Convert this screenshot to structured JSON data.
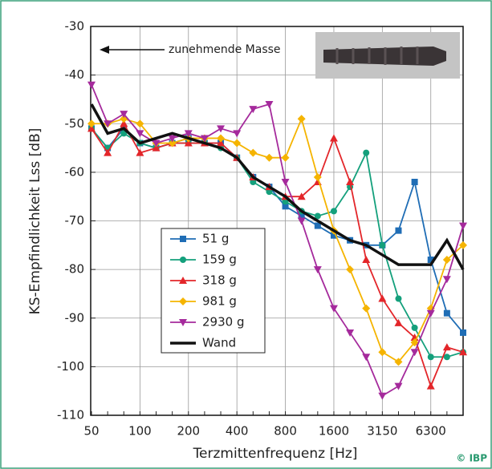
{
  "chart_data": {
    "type": "line",
    "ylabel": "KS-Empfindlichkeit Lss [dB]",
    "xlabel": "Terzmittenfrequenz [Hz]",
    "annotation": "zunehmende Masse",
    "credit": "© IBP",
    "categories": [
      "50",
      null,
      null,
      "100",
      null,
      null,
      "200",
      null,
      null,
      "400",
      null,
      null,
      "800",
      null,
      null,
      "1600",
      null,
      null,
      "3150",
      null,
      null,
      "6300",
      null,
      null
    ],
    "ylim": [
      -110,
      -30
    ],
    "yticks": [
      -30,
      -40,
      -50,
      -60,
      -70,
      -80,
      -90,
      -100,
      -110
    ],
    "grid": true,
    "series": [
      {
        "name": "51 g",
        "color": "#1f6db5",
        "marker": "square",
        "values": [
          -51,
          -55,
          -51,
          -54,
          -55,
          -54,
          -53,
          -54,
          -54,
          -57,
          -61,
          -63,
          -67,
          -69,
          -71,
          -73,
          -74,
          -75,
          -75,
          -72,
          -62,
          -78,
          -89,
          -93
        ]
      },
      {
        "name": "159 g",
        "color": "#14a07c",
        "marker": "circle",
        "values": [
          -51,
          -55,
          -52,
          -54,
          -55,
          -54,
          -54,
          -54,
          -55,
          -57,
          -62,
          -64,
          -66,
          -68,
          -69,
          -68,
          -63,
          -56,
          -75,
          -86,
          -92,
          -98,
          -98,
          -97
        ]
      },
      {
        "name": "318 g",
        "color": "#e3262a",
        "marker": "triangle",
        "values": [
          -51,
          -56,
          -50,
          -56,
          -55,
          -54,
          -54,
          -54,
          -54,
          -57,
          -61,
          -63,
          -65,
          -65,
          -62,
          -53,
          -62,
          -78,
          -86,
          -91,
          -94,
          -104,
          -96,
          -97
        ]
      },
      {
        "name": "981 g",
        "color": "#f5b400",
        "marker": "diamond",
        "values": [
          -50,
          -50,
          -49,
          -50,
          -54,
          -54,
          -53,
          -53,
          -53,
          -54,
          -56,
          -57,
          -57,
          -49,
          -61,
          -72,
          -80,
          -88,
          -97,
          -99,
          -95,
          -88,
          -78,
          -75
        ]
      },
      {
        "name": "2930 g",
        "color": "#a52a9c",
        "marker": "triangle-down",
        "values": [
          -42,
          -50,
          -48,
          -52,
          -54,
          -53,
          -52,
          -53,
          -51,
          -52,
          -47,
          -46,
          -62,
          -70,
          -80,
          -88,
          -93,
          -98,
          -106,
          -104,
          -97,
          -89,
          -82,
          -71
        ]
      },
      {
        "name": "Wand",
        "color": "#111111",
        "marker": "none",
        "values": [
          -46,
          -52,
          -51,
          -54,
          -53,
          -52,
          -53,
          -54,
          -55,
          -57,
          -61,
          -63,
          -65,
          -68,
          -70,
          -72,
          -74,
          -75,
          -77,
          -79,
          -79,
          -79,
          -74,
          -80
        ]
      }
    ]
  }
}
